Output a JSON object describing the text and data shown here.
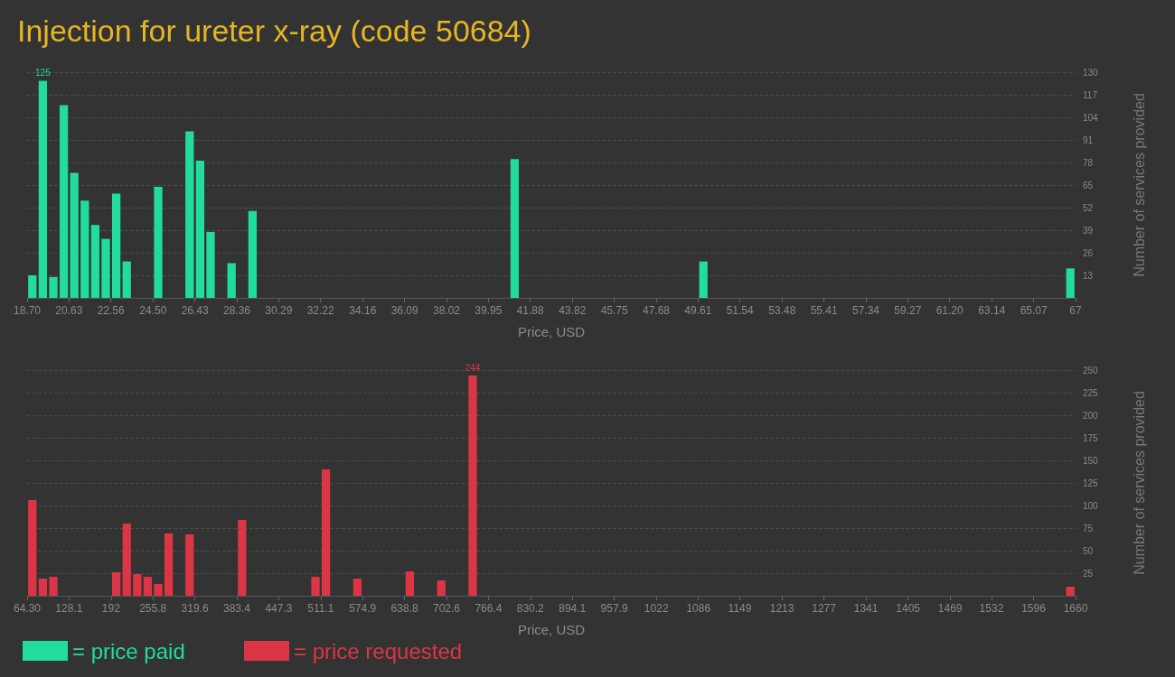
{
  "chart_data": [
    {
      "type": "histogram",
      "title": "Injection for ureter x-ray (code 50684)",
      "xlabel": "Price, USD",
      "ylabel": "Number of services provided",
      "bins": [
        18.7,
        19.183,
        19.666,
        20.149,
        20.632,
        21.115,
        21.598,
        22.081,
        22.564,
        23.047,
        23.53,
        24.013,
        24.496,
        24.979,
        25.462,
        25.945,
        26.428,
        26.911,
        27.394,
        27.877,
        28.36,
        28.843,
        29.326,
        29.809,
        30.292,
        30.775,
        31.258,
        31.741,
        32.224,
        32.707,
        33.19,
        33.673,
        34.156,
        34.639,
        35.122,
        35.605,
        36.088,
        36.571,
        37.054,
        37.537,
        38.02,
        38.503,
        38.986,
        39.469,
        39.952,
        40.435,
        40.918,
        41.401,
        41.884,
        42.367,
        42.85,
        43.333,
        43.816,
        44.299,
        44.782,
        45.265,
        45.748,
        46.231,
        46.714,
        47.197,
        47.68,
        48.163,
        48.646,
        49.129,
        49.612,
        50.095,
        50.578,
        51.061,
        51.544,
        52.027,
        52.51,
        52.993,
        53.476,
        53.959,
        54.442,
        54.925,
        55.408,
        55.891,
        56.374,
        56.857,
        57.34,
        57.823,
        58.306,
        58.789,
        59.272,
        59.755,
        60.238,
        60.721,
        61.204,
        61.687,
        62.17,
        62.653,
        63.136,
        63.619,
        64.102,
        64.585,
        65.068,
        65.551,
        66.034,
        66.517,
        67
      ],
      "series": [
        {
          "name": "= price paid",
          "color": "#21dc9a",
          "values": [
            13,
            125,
            12,
            111,
            72,
            56,
            42,
            34,
            60,
            21,
            0,
            0,
            64,
            0,
            0,
            96,
            79,
            38,
            0,
            20,
            0,
            50,
            0,
            0,
            0,
            0,
            0,
            0,
            0,
            0,
            0,
            0,
            0,
            0,
            0,
            0,
            0,
            0,
            0,
            0,
            0,
            0,
            0,
            0,
            0,
            0,
            80,
            0,
            0,
            0,
            0,
            0,
            0,
            0,
            0,
            0,
            0,
            0,
            0,
            0,
            0,
            0,
            0,
            0,
            21,
            0,
            0,
            0,
            0,
            0,
            0,
            0,
            0,
            0,
            0,
            0,
            0,
            0,
            0,
            0,
            0,
            0,
            0,
            0,
            0,
            0,
            0,
            0,
            0,
            0,
            0,
            0,
            0,
            0,
            0,
            0,
            0,
            0,
            0,
            17
          ],
          "value_labels": [
            null,
            "125",
            null,
            null,
            null,
            null,
            null,
            null,
            null,
            null,
            null,
            null,
            null,
            null,
            null,
            null,
            null,
            null,
            null,
            null,
            null,
            null,
            null,
            null,
            null,
            null,
            null,
            null,
            null,
            null,
            null,
            null,
            null,
            null,
            null,
            null,
            null,
            null,
            null,
            null,
            null,
            null,
            null,
            null,
            null,
            null,
            null,
            null,
            null,
            null,
            null,
            null,
            null,
            null,
            null,
            null,
            null,
            null,
            null,
            null,
            null,
            null,
            null,
            null,
            null,
            null,
            null,
            null,
            null,
            null,
            null,
            null,
            null,
            null,
            null,
            null,
            null,
            null,
            null,
            null,
            null,
            null,
            null,
            null,
            null,
            null,
            null,
            null,
            null,
            null,
            null,
            null,
            null,
            null,
            null,
            null,
            null,
            null,
            null,
            null
          ]
        }
      ],
      "xlim": [
        18.7,
        67
      ],
      "xticks": [
        {
          "value": 18.7,
          "label": "18.70"
        },
        20.63,
        22.56,
        {
          "value": 24.5,
          "label": "24.50"
        },
        26.43,
        28.36,
        30.29,
        32.22,
        34.16,
        36.09,
        38.02,
        39.95,
        41.88,
        43.82,
        45.75,
        47.68,
        49.61,
        51.54,
        53.48,
        55.41,
        57.34,
        59.27,
        {
          "value": 61.2,
          "label": "61.20"
        },
        63.14,
        65.07,
        67
      ],
      "ylim": [
        0,
        130
      ],
      "yticks": [
        13,
        26,
        39,
        52,
        65,
        78,
        91,
        104,
        117,
        130
      ],
      "grid": "y",
      "legend": "bottom left"
    },
    {
      "type": "histogram",
      "xlabel": "Price, USD",
      "ylabel": "Number of services provided",
      "bins": [
        64.3,
        80.26,
        96.21,
        112.17,
        128.13,
        144.09,
        160.04,
        176.0,
        191.96,
        207.91,
        223.87,
        239.83,
        255.78,
        271.74,
        287.7,
        303.66,
        319.61,
        335.57,
        351.53,
        367.48,
        383.44,
        399.4,
        415.35,
        431.31,
        447.27,
        463.23,
        479.18,
        495.14,
        511.1,
        527.05,
        543.01,
        558.97,
        574.92,
        590.88,
        606.84,
        622.8,
        638.75,
        654.71,
        670.67,
        686.62,
        702.58,
        718.54,
        734.49,
        750.45,
        766.41,
        782.37,
        798.32,
        814.28,
        830.24,
        846.19,
        862.15,
        878.11,
        894.06,
        910.02,
        925.98,
        941.94,
        957.89,
        973.85,
        989.81,
        1005.76,
        1021.72,
        1037.68,
        1053.63,
        1069.59,
        1085.55,
        1101.51,
        1117.46,
        1133.42,
        1149.38,
        1165.33,
        1181.29,
        1197.25,
        1213.2,
        1229.16,
        1245.12,
        1261.08,
        1277.03,
        1292.99,
        1308.95,
        1324.9,
        1340.86,
        1356.82,
        1372.77,
        1388.73,
        1404.69,
        1420.65,
        1436.6,
        1452.56,
        1468.52,
        1484.47,
        1500.43,
        1516.39,
        1532.34,
        1548.3,
        1564.26,
        1580.22,
        1596.17,
        1612.13,
        1628.09,
        1644.04,
        1660
      ],
      "series": [
        {
          "name": "= price requested",
          "color": "#dc3545",
          "values": [
            106,
            19,
            21,
            0,
            0,
            0,
            0,
            0,
            26,
            80,
            24,
            21,
            13,
            69,
            0,
            68,
            0,
            0,
            0,
            0,
            84,
            0,
            0,
            0,
            0,
            0,
            0,
            21,
            140,
            0,
            0,
            19,
            0,
            0,
            0,
            0,
            27,
            0,
            0,
            17,
            0,
            0,
            244,
            0,
            0,
            0,
            0,
            0,
            0,
            0,
            0,
            0,
            0,
            0,
            0,
            0,
            0,
            0,
            0,
            0,
            0,
            0,
            0,
            0,
            0,
            0,
            0,
            0,
            0,
            0,
            0,
            0,
            0,
            0,
            0,
            0,
            0,
            0,
            0,
            0,
            0,
            0,
            0,
            0,
            0,
            0,
            0,
            0,
            0,
            0,
            0,
            0,
            0,
            0,
            0,
            0,
            0,
            0,
            0,
            10
          ],
          "value_labels": [
            null,
            null,
            null,
            null,
            null,
            null,
            null,
            null,
            null,
            null,
            null,
            null,
            null,
            null,
            null,
            null,
            null,
            null,
            null,
            null,
            null,
            null,
            null,
            null,
            null,
            null,
            null,
            null,
            null,
            null,
            null,
            null,
            null,
            null,
            null,
            null,
            null,
            null,
            null,
            null,
            null,
            null,
            "244",
            null,
            null,
            null,
            null,
            null,
            null,
            null,
            null,
            null,
            null,
            null,
            null,
            null,
            null,
            null,
            null,
            null,
            null,
            null,
            null,
            null,
            null,
            null,
            null,
            null,
            null,
            null,
            null,
            null,
            null,
            null,
            null,
            null,
            null,
            null,
            null,
            null,
            null,
            null,
            null,
            null,
            null,
            null,
            null,
            null,
            null,
            null,
            null,
            null,
            null,
            null,
            null,
            null,
            null,
            null,
            null,
            null
          ]
        }
      ],
      "xlim": [
        64.3,
        1660
      ],
      "xticks": [
        {
          "value": 64.3,
          "label": "64.30"
        },
        128.1,
        192,
        255.8,
        319.6,
        383.4,
        447.3,
        511.1,
        574.9,
        638.8,
        702.6,
        766.4,
        830.2,
        894.1,
        957.9,
        1022,
        1086,
        1149,
        1213,
        1277,
        1341,
        1405,
        1469,
        1532,
        1596,
        1660
      ],
      "ylim": [
        0,
        250
      ],
      "yticks": [
        25,
        50,
        75,
        100,
        125,
        150,
        175,
        200,
        225,
        250
      ],
      "grid": "y",
      "legend": "bottom left"
    }
  ]
}
